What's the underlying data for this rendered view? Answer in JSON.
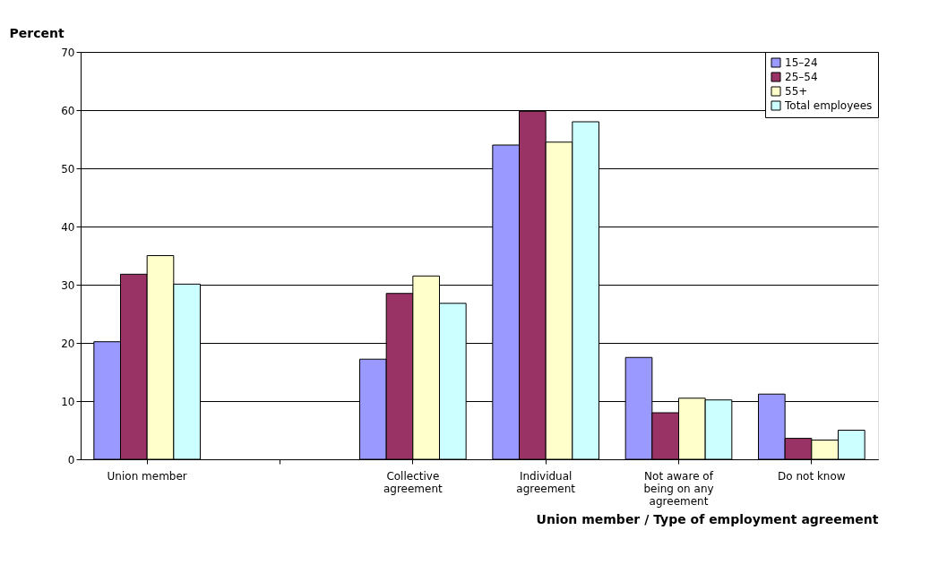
{
  "chart_data": {
    "type": "bar",
    "ylabel": "Percent",
    "xlabel": "Union member / Type of employment agreement",
    "categories": [
      "Union member",
      null,
      "Collective agreement",
      "Individual agreement",
      "Not aware of being on any agreement",
      "Do not know"
    ],
    "series": [
      {
        "name": "15–24",
        "color": "#9999ff",
        "values": [
          20.2,
          null,
          17.2,
          54.0,
          17.5,
          11.2
        ]
      },
      {
        "name": "25–54",
        "color": "#993366",
        "values": [
          31.8,
          null,
          28.5,
          59.8,
          8.0,
          3.6
        ]
      },
      {
        "name": "55+",
        "color": "#ffffcc",
        "values": [
          35.0,
          null,
          31.5,
          54.5,
          10.5,
          3.3
        ]
      },
      {
        "name": "Total employees",
        "color": "#ccffff",
        "values": [
          30.1,
          null,
          26.8,
          58.0,
          10.2,
          5.0
        ]
      }
    ],
    "ylim": [
      0,
      70
    ],
    "yticks": [
      0,
      10,
      20,
      30,
      40,
      50,
      60,
      70
    ],
    "grid": "y",
    "legend": "top right"
  }
}
